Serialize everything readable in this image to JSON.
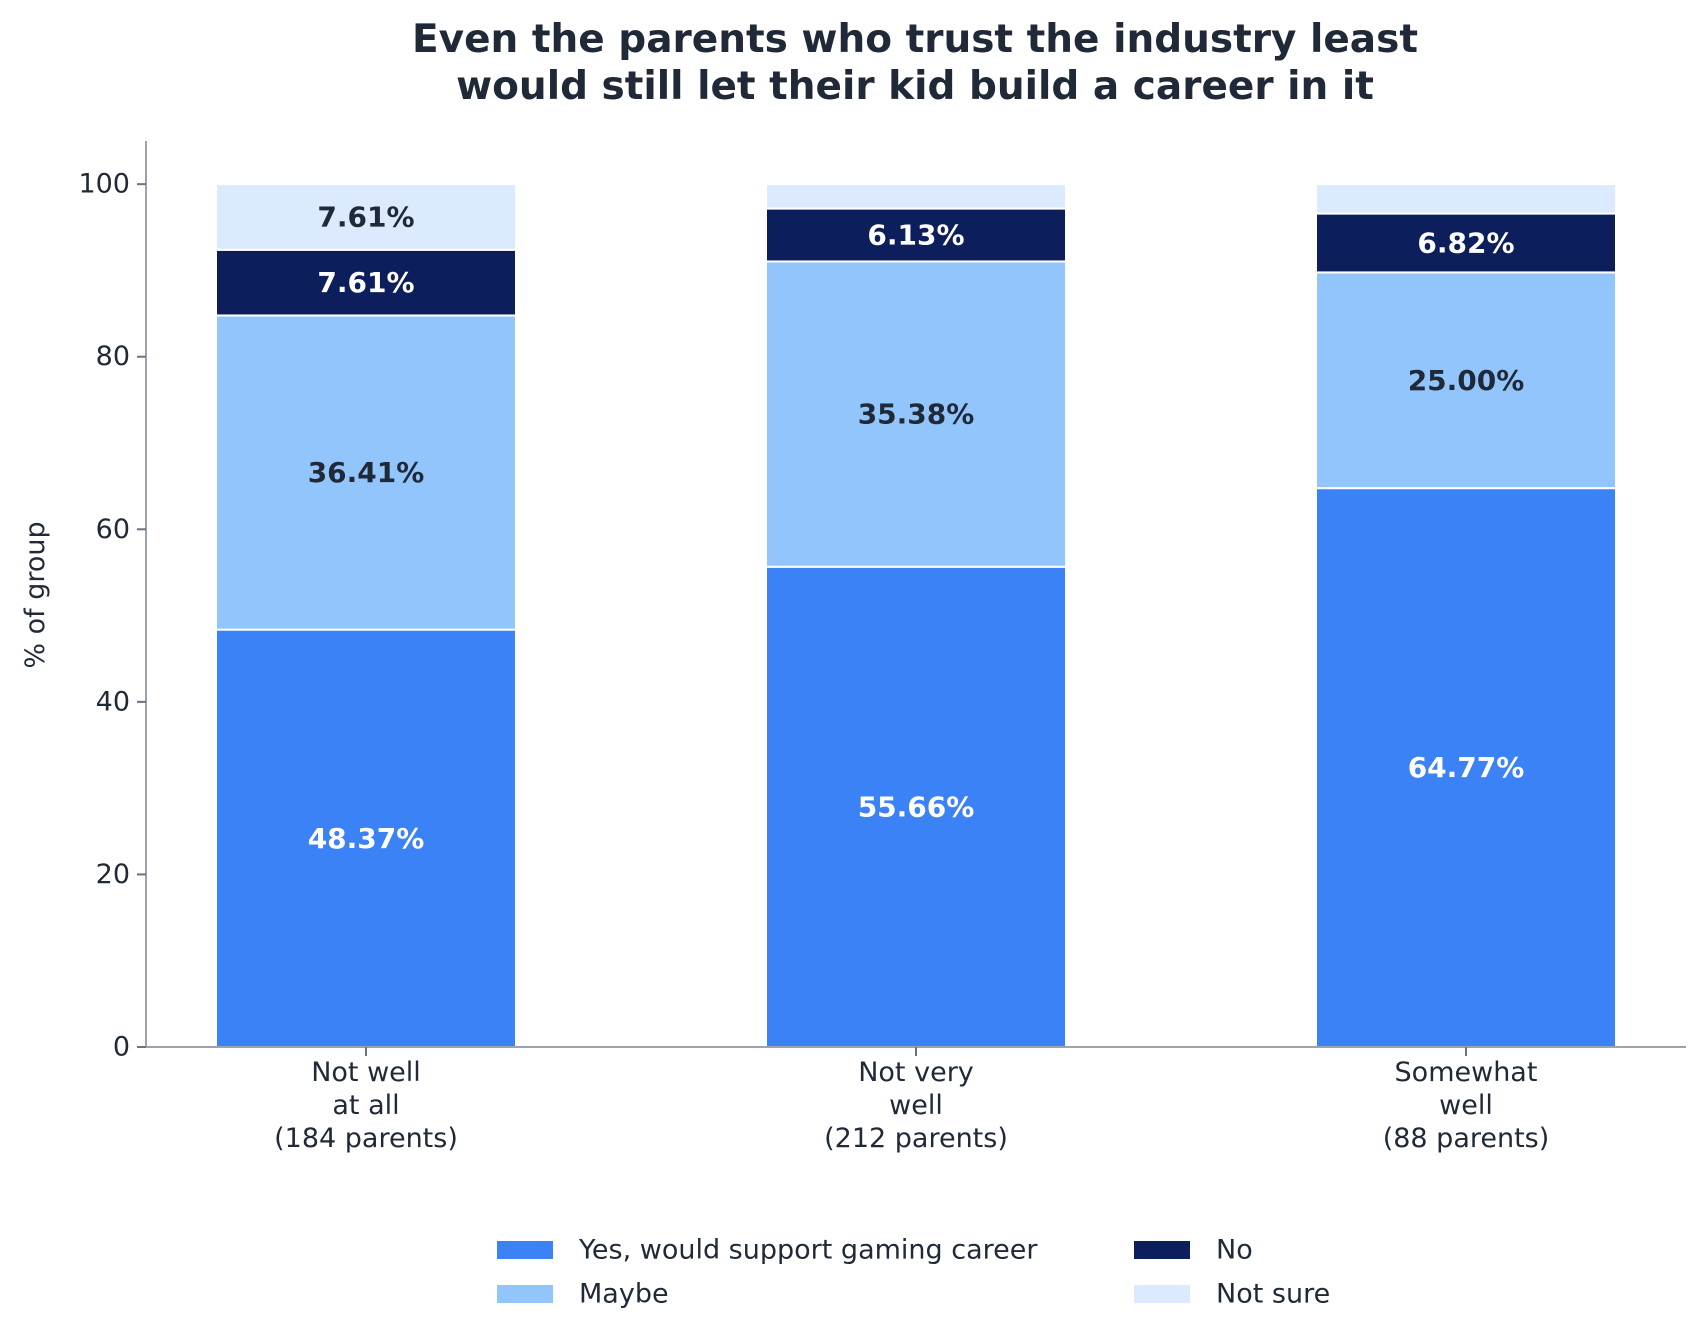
{
  "chart_data": {
    "type": "bar",
    "stacked": true,
    "title": [
      "Even the parents who trust the industry least",
      "would still let their kid build a career in it"
    ],
    "ylabel": "% of group",
    "ylim": [
      0,
      105
    ],
    "yticks": [
      "0",
      "20",
      "40",
      "60",
      "80",
      "100"
    ],
    "categories": [
      [
        "Not well",
        "at all",
        "(184 parents)"
      ],
      [
        "Not very",
        "well",
        "(212 parents)"
      ],
      [
        "Somewhat",
        "well",
        "(88 parents)"
      ]
    ],
    "series": [
      {
        "name": "Yes, would support gaming career",
        "color": "#3b82f6",
        "label_color": "#ffffff",
        "values": [
          48.37,
          55.66,
          64.77
        ],
        "labels": [
          "48.37%",
          "55.66%",
          "64.77%"
        ]
      },
      {
        "name": "Maybe",
        "color": "#93c5fd",
        "label_color": "#1f2937",
        "values": [
          36.41,
          35.38,
          25.0
        ],
        "labels": [
          "36.41%",
          "35.38%",
          "25.00%"
        ]
      },
      {
        "name": "No",
        "color": "#0c1e5b",
        "label_color": "#ffffff",
        "values": [
          7.61,
          6.13,
          6.82
        ],
        "labels": [
          "7.61%",
          "6.13%",
          "6.82%"
        ]
      },
      {
        "name": "Not sure",
        "color": "#dbeafe",
        "label_color": "#1f2937",
        "values": [
          7.61,
          2.83,
          3.41
        ],
        "labels": [
          "7.61%",
          "",
          ""
        ]
      }
    ],
    "legend": {
      "placement": "bottom-center",
      "columns": 2
    },
    "grid": false
  }
}
